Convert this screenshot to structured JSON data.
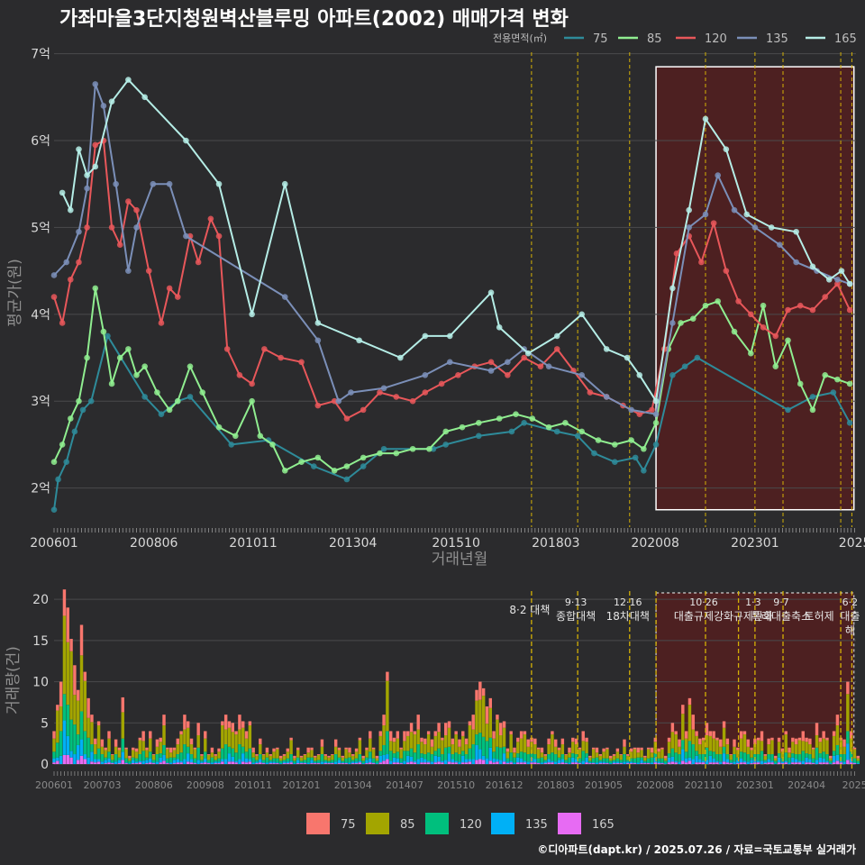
{
  "title": "가좌마을3단지청원벽산블루밍 아파트(2002) 매매가격 변화",
  "credit": "©디아파트(dapt.kr) / 2025.07.26 / 자료=국토교통부 실거래가",
  "legend": {
    "title": "전용면적(㎡)",
    "items": [
      {
        "label": "75",
        "line_color": "#2e8b9a",
        "bar_color": "#f8766d"
      },
      {
        "label": "85",
        "line_color": "#90ee90",
        "bar_color": "#a3a500"
      },
      {
        "label": "120",
        "line_color": "#e8575a",
        "bar_color": "#00bf7d"
      },
      {
        "label": "135",
        "line_color": "#7b8fb8",
        "bar_color": "#00b0f6"
      },
      {
        "label": "165",
        "line_color": "#b5ede6",
        "bar_color": "#e76bf3"
      }
    ]
  },
  "colors": {
    "background": "#2b2b2d",
    "grid": "#4a4a4c",
    "policy_line": "#d4b106",
    "highlight_fill": "#5a1e1e",
    "highlight_border": "#ffffff"
  },
  "chart_data": [
    {
      "type": "line",
      "title": "가좌마을3단지청원벽산블루밍 아파트(2002) 매매가격 변화",
      "xlabel": "거래년월",
      "ylabel": "평균가(원)",
      "x_unit": "year",
      "xlim": [
        2006.0,
        2025.45
      ],
      "ylim": [
        1.55,
        7.1
      ],
      "y_ticks": [
        2,
        3,
        4,
        5,
        6,
        7
      ],
      "y_tick_labels": [
        "2억",
        "3억",
        "4억",
        "5억",
        "6억",
        "7억"
      ],
      "x_ticks": [
        2006.0,
        2008.42,
        2010.83,
        2013.25,
        2015.75,
        2018.17,
        2020.58,
        2023.0,
        2025.42
      ],
      "x_tick_labels": [
        "200601",
        "200806",
        "201011",
        "201304",
        "201510",
        "201803",
        "202008",
        "202301",
        "2025"
      ],
      "highlight_range": {
        "x": [
          2020.6,
          2025.4
        ],
        "y": [
          1.75,
          6.85
        ]
      },
      "policy_lines_x": [
        2017.58,
        2018.7,
        2019.96,
        2021.8,
        2023.0,
        2023.68,
        2025.08,
        2025.35
      ],
      "series": [
        {
          "name": "75",
          "x": [
            2006.0,
            2006.1,
            2006.3,
            2006.5,
            2006.7,
            2006.9,
            2007.3,
            2008.2,
            2008.6,
            2009.0,
            2009.3,
            2010.3,
            2011.2,
            2012.3,
            2013.1,
            2013.5,
            2014.0,
            2015.2,
            2015.5,
            2016.3,
            2017.1,
            2017.4,
            2018.2,
            2018.7,
            2019.1,
            2019.6,
            2020.1,
            2020.3,
            2020.6,
            2021.0,
            2021.3,
            2021.6,
            2023.8,
            2024.4,
            2024.9,
            2025.3
          ],
          "values": [
            1.75,
            2.1,
            2.3,
            2.65,
            2.9,
            3.0,
            3.75,
            3.05,
            2.85,
            3.0,
            3.05,
            2.5,
            2.55,
            2.25,
            2.1,
            2.25,
            2.45,
            2.45,
            2.5,
            2.6,
            2.65,
            2.75,
            2.65,
            2.6,
            2.4,
            2.3,
            2.35,
            2.2,
            2.5,
            3.3,
            3.4,
            3.5,
            2.9,
            3.05,
            3.1,
            2.75
          ]
        },
        {
          "name": "85",
          "x": [
            2006.0,
            2006.2,
            2006.4,
            2006.6,
            2006.8,
            2007.0,
            2007.2,
            2007.4,
            2007.6,
            2007.8,
            2008.0,
            2008.2,
            2008.5,
            2008.8,
            2009.0,
            2009.3,
            2009.6,
            2010.0,
            2010.4,
            2010.8,
            2011.0,
            2011.3,
            2011.6,
            2012.0,
            2012.4,
            2012.8,
            2013.1,
            2013.5,
            2013.9,
            2014.3,
            2014.7,
            2015.1,
            2015.5,
            2015.9,
            2016.3,
            2016.8,
            2017.2,
            2017.6,
            2018.0,
            2018.4,
            2018.8,
            2019.2,
            2019.6,
            2020.0,
            2020.3,
            2020.6,
            2020.9,
            2021.2,
            2021.5,
            2021.8,
            2022.1,
            2022.5,
            2022.9,
            2023.2,
            2023.5,
            2023.8,
            2024.1,
            2024.4,
            2024.7,
            2025.0,
            2025.3
          ],
          "values": [
            2.3,
            2.5,
            2.8,
            3.0,
            3.5,
            4.3,
            3.8,
            3.2,
            3.5,
            3.6,
            3.3,
            3.4,
            3.1,
            2.9,
            3.0,
            3.4,
            3.1,
            2.7,
            2.6,
            3.0,
            2.6,
            2.5,
            2.2,
            2.3,
            2.35,
            2.2,
            2.25,
            2.35,
            2.4,
            2.4,
            2.45,
            2.45,
            2.65,
            2.7,
            2.75,
            2.8,
            2.85,
            2.8,
            2.7,
            2.75,
            2.65,
            2.55,
            2.5,
            2.55,
            2.45,
            2.75,
            3.6,
            3.9,
            3.95,
            4.1,
            4.15,
            3.8,
            3.55,
            4.1,
            3.4,
            3.7,
            3.2,
            2.9,
            3.3,
            3.25,
            3.2
          ]
        },
        {
          "name": "120",
          "x": [
            2006.0,
            2006.2,
            2006.4,
            2006.6,
            2006.8,
            2007.0,
            2007.2,
            2007.4,
            2007.6,
            2007.8,
            2008.0,
            2008.3,
            2008.6,
            2008.8,
            2009.0,
            2009.3,
            2009.5,
            2009.8,
            2010.0,
            2010.2,
            2010.5,
            2010.8,
            2011.1,
            2011.5,
            2012.0,
            2012.4,
            2012.8,
            2013.1,
            2013.5,
            2013.9,
            2014.3,
            2014.7,
            2015.0,
            2015.4,
            2015.8,
            2016.2,
            2016.6,
            2017.0,
            2017.4,
            2017.8,
            2018.2,
            2018.6,
            2019.0,
            2019.4,
            2019.8,
            2020.2,
            2020.5,
            2020.8,
            2021.1,
            2021.4,
            2021.7,
            2022.0,
            2022.3,
            2022.6,
            2022.9,
            2023.2,
            2023.5,
            2023.8,
            2024.1,
            2024.4,
            2024.7,
            2025.0,
            2025.3
          ],
          "values": [
            4.2,
            3.9,
            4.4,
            4.6,
            5.0,
            5.95,
            6.0,
            5.0,
            4.8,
            5.3,
            5.2,
            4.5,
            3.9,
            4.3,
            4.2,
            4.9,
            4.6,
            5.1,
            4.9,
            3.6,
            3.3,
            3.2,
            3.6,
            3.5,
            3.45,
            2.95,
            3.0,
            2.8,
            2.9,
            3.1,
            3.05,
            3.0,
            3.1,
            3.2,
            3.3,
            3.4,
            3.45,
            3.3,
            3.5,
            3.4,
            3.6,
            3.35,
            3.1,
            3.05,
            2.95,
            2.85,
            2.9,
            3.6,
            4.7,
            4.9,
            4.6,
            5.05,
            4.5,
            4.15,
            4.0,
            3.85,
            3.75,
            4.05,
            4.1,
            4.05,
            4.2,
            4.35,
            4.05
          ]
        },
        {
          "name": "135",
          "x": [
            2006.0,
            2006.3,
            2006.6,
            2006.8,
            2007.0,
            2007.2,
            2007.5,
            2007.8,
            2008.0,
            2008.4,
            2008.8,
            2009.2,
            2011.6,
            2012.4,
            2012.9,
            2013.2,
            2014.0,
            2015.0,
            2015.6,
            2016.6,
            2017.0,
            2017.4,
            2018.0,
            2018.8,
            2019.4,
            2020.0,
            2020.6,
            2021.0,
            2021.4,
            2021.8,
            2022.1,
            2022.5,
            2023.0,
            2023.6,
            2024.0,
            2024.5,
            2025.0,
            2025.3
          ],
          "values": [
            4.45,
            4.6,
            4.95,
            5.45,
            6.65,
            6.4,
            5.5,
            4.5,
            5.0,
            5.5,
            5.5,
            4.9,
            4.2,
            3.7,
            3.0,
            3.1,
            3.15,
            3.3,
            3.45,
            3.35,
            3.45,
            3.6,
            3.4,
            3.3,
            3.05,
            2.9,
            2.85,
            3.9,
            5.0,
            5.15,
            5.6,
            5.2,
            5.0,
            4.8,
            4.6,
            4.5,
            4.4,
            4.35
          ]
        },
        {
          "name": "165",
          "x": [
            2006.2,
            2006.4,
            2006.6,
            2006.8,
            2007.0,
            2007.4,
            2007.8,
            2008.2,
            2009.2,
            2010.0,
            2010.8,
            2011.6,
            2012.4,
            2013.4,
            2014.4,
            2015.0,
            2015.6,
            2016.6,
            2016.8,
            2017.5,
            2018.2,
            2018.8,
            2019.4,
            2019.9,
            2020.2,
            2020.6,
            2021.0,
            2021.4,
            2021.8,
            2022.3,
            2022.8,
            2023.4,
            2024.0,
            2024.4,
            2024.8,
            2025.1,
            2025.3
          ],
          "values": [
            5.4,
            5.2,
            5.9,
            5.6,
            5.7,
            6.45,
            6.7,
            6.5,
            6.0,
            5.5,
            4.0,
            5.5,
            3.9,
            3.7,
            3.5,
            3.75,
            3.75,
            4.25,
            3.85,
            3.55,
            3.75,
            4.0,
            3.6,
            3.5,
            3.3,
            3.0,
            4.3,
            5.2,
            6.25,
            5.9,
            5.15,
            5.0,
            4.95,
            4.55,
            4.4,
            4.5,
            4.35
          ]
        }
      ]
    },
    {
      "type": "bar",
      "title": "",
      "xlabel": "",
      "ylabel": "거래량(건)",
      "xlim": [
        2006.0,
        2025.45
      ],
      "ylim": [
        0,
        21
      ],
      "y_ticks": [
        0,
        5,
        10,
        15,
        20
      ],
      "y_tick_labels": [
        "0",
        "5",
        "10",
        "15",
        "20"
      ],
      "x_ticks": [
        2006.0,
        2007.17,
        2008.42,
        2009.67,
        2010.83,
        2012.0,
        2013.25,
        2014.5,
        2015.75,
        2016.92,
        2018.17,
        2019.33,
        2020.58,
        2021.75,
        2023.0,
        2024.25,
        2025.42
      ],
      "x_tick_labels": [
        "200601",
        "200703",
        "200806",
        "200908",
        "201011",
        "201201",
        "201304",
        "201407",
        "201510",
        "201612",
        "201803",
        "201905",
        "202008",
        "202110",
        "202301",
        "202404",
        "2025"
      ],
      "highlight_range": {
        "x": [
          2020.6,
          2025.4
        ]
      },
      "policy_lines_x": [
        2017.58,
        2018.7,
        2019.96,
        2020.6,
        2021.8,
        2022.6,
        2023.0,
        2023.68,
        2025.08,
        2025.35
      ],
      "annotations": [
        {
          "x": 2017.58,
          "lines": [
            "8·2 대책"
          ]
        },
        {
          "x": 2018.7,
          "lines": [
            "9·13",
            "종합대책"
          ]
        },
        {
          "x": 2019.96,
          "lines": [
            "12·16",
            "18차대책"
          ]
        },
        {
          "x": 2021.8,
          "lines": [
            "10·26",
            "대출규제강화"
          ]
        },
        {
          "x": 2023.0,
          "lines": [
            "1·3",
            "규제완화"
          ]
        },
        {
          "x": 2023.68,
          "lines": [
            "9·7",
            "특례대출축소"
          ]
        },
        {
          "x": 2024.6,
          "lines": [
            "",
            "토허제"
          ]
        },
        {
          "x": 2025.35,
          "lines": [
            "6·2",
            "대출",
            "해"
          ]
        }
      ],
      "monthly_totals": [
        4,
        7,
        10,
        21,
        19,
        15,
        12,
        9,
        17,
        11,
        8,
        6,
        3,
        5,
        3,
        2,
        4,
        1,
        3,
        2,
        8,
        2,
        1,
        2,
        2,
        3,
        4,
        2,
        4,
        1,
        3,
        3,
        6,
        2,
        2,
        2,
        3,
        4,
        6,
        5,
        3,
        2,
        5,
        1,
        4,
        1,
        2,
        1,
        2,
        5,
        6,
        5,
        5,
        4,
        6,
        5,
        4,
        5,
        2,
        1,
        3,
        1,
        2,
        1,
        2,
        2,
        1,
        1,
        2,
        3,
        1,
        2,
        1,
        1,
        2,
        2,
        1,
        1,
        3,
        1,
        1,
        1,
        3,
        2,
        1,
        2,
        2,
        1,
        2,
        3,
        1,
        2,
        4,
        2,
        1,
        4,
        6,
        11,
        4,
        3,
        4,
        2,
        4,
        4,
        5,
        4,
        6,
        3,
        3,
        4,
        3,
        4,
        5,
        3,
        5,
        5,
        3,
        4,
        3,
        4,
        3,
        5,
        6,
        9,
        10,
        9,
        7,
        8,
        4,
        6,
        5,
        5,
        2,
        4,
        2,
        3,
        4,
        4,
        3,
        3,
        3,
        2,
        2,
        1,
        3,
        4,
        3,
        2,
        3,
        1,
        2,
        3,
        3,
        2,
        4,
        3,
        1,
        2,
        2,
        1,
        2,
        2,
        1,
        1,
        2,
        1,
        3,
        1,
        2,
        2,
        2,
        2,
        1,
        2,
        2,
        3,
        2,
        2,
        1,
        3,
        5,
        4,
        3,
        7,
        4,
        8,
        6,
        4,
        3,
        3,
        5,
        4,
        4,
        3,
        3,
        5,
        3,
        1,
        3,
        2,
        4,
        4,
        3,
        2,
        3,
        3,
        4,
        1,
        3,
        3,
        1,
        3,
        2,
        4,
        2,
        3,
        3,
        3,
        4,
        3,
        3,
        2,
        5,
        3,
        4,
        3,
        1,
        4,
        6,
        3,
        3,
        10,
        4,
        2,
        1
      ]
    }
  ]
}
